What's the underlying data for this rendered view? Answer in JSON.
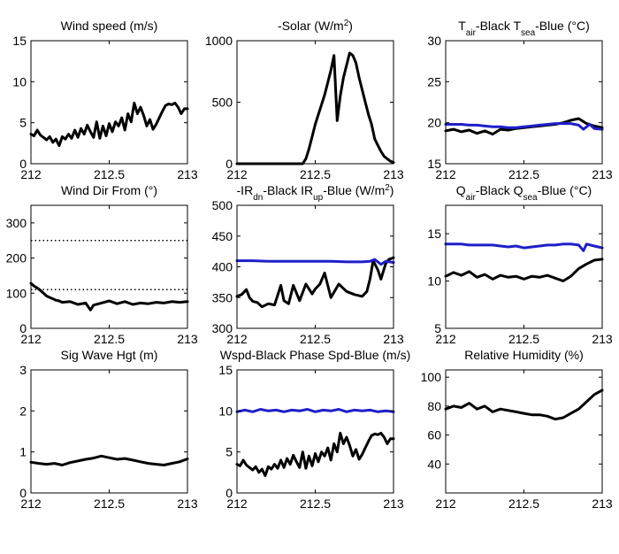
{
  "chart_data": [
    {
      "type": "line",
      "title": "Wind speed (m/s)",
      "xlim": [
        212,
        213
      ],
      "ylim": [
        0,
        15
      ],
      "xticks": [
        212,
        212.5,
        213
      ],
      "xticklabels": [
        "212",
        "212.5",
        "213"
      ],
      "yticks": [
        0,
        5,
        10,
        15
      ],
      "yticklabels": [
        "0",
        "5",
        "10",
        "15"
      ],
      "series": [
        {
          "color": "#000000",
          "style": "solid",
          "x": [
            212,
            212.02,
            212.04,
            212.06,
            212.08,
            212.1,
            212.12,
            212.14,
            212.16,
            212.18,
            212.2,
            212.22,
            212.24,
            212.26,
            212.28,
            212.3,
            212.32,
            212.34,
            212.36,
            212.38,
            212.4,
            212.42,
            212.44,
            212.46,
            212.48,
            212.5,
            212.52,
            212.54,
            212.56,
            212.58,
            212.6,
            212.62,
            212.64,
            212.66,
            212.68,
            212.7,
            212.72,
            212.74,
            212.76,
            212.78,
            212.8,
            212.82,
            212.84,
            212.86,
            212.88,
            212.9,
            212.92,
            212.94,
            212.96,
            212.98,
            213
          ],
          "y": [
            3.6,
            3.4,
            4.1,
            3.5,
            3.2,
            2.9,
            3.3,
            2.6,
            3.0,
            2.2,
            3.3,
            3.0,
            3.6,
            3.1,
            4.1,
            3.2,
            4.3,
            3.6,
            4.7,
            3.9,
            3.2,
            5.1,
            3.1,
            4.6,
            3.4,
            4.9,
            3.9,
            5.1,
            4.6,
            5.6,
            4.1,
            6.1,
            5.1,
            7.4,
            6.1,
            6.9,
            5.9,
            4.6,
            5.4,
            4.2,
            4.8,
            5.6,
            6.4,
            7.1,
            7.3,
            7.2,
            7.4,
            6.9,
            6.1,
            6.7,
            6.7
          ]
        }
      ]
    },
    {
      "type": "line",
      "title": "-Solar (W/m²)",
      "xlim": [
        212,
        213
      ],
      "ylim": [
        0,
        1000
      ],
      "xticks": [
        212,
        212.5,
        213
      ],
      "xticklabels": [
        "212",
        "212.5",
        "213"
      ],
      "yticks": [
        0,
        500,
        1000
      ],
      "yticklabels": [
        "0",
        "500",
        "1000"
      ],
      "series": [
        {
          "color": "#000000",
          "style": "solid",
          "x": [
            212,
            212.1,
            212.2,
            212.3,
            212.38,
            212.42,
            212.44,
            212.46,
            212.48,
            212.5,
            212.52,
            212.54,
            212.56,
            212.58,
            212.6,
            212.62,
            212.64,
            212.66,
            212.68,
            212.7,
            212.72,
            212.74,
            212.76,
            212.78,
            212.8,
            212.82,
            212.84,
            212.86,
            212.88,
            212.9,
            212.92,
            212.94,
            212.96,
            212.98,
            213
          ],
          "y": [
            0,
            0,
            0,
            0,
            0,
            0,
            40,
            120,
            220,
            320,
            400,
            480,
            560,
            660,
            760,
            880,
            350,
            550,
            700,
            800,
            900,
            880,
            820,
            700,
            600,
            500,
            400,
            320,
            200,
            150,
            100,
            60,
            40,
            20,
            10
          ]
        }
      ]
    },
    {
      "type": "line",
      "title": "T_air-Black T_sea-Blue (°C)",
      "xlim": [
        212,
        213
      ],
      "ylim": [
        15,
        30
      ],
      "xticks": [
        212,
        212.5,
        213
      ],
      "xticklabels": [
        "212",
        "212.5",
        "213"
      ],
      "yticks": [
        15,
        20,
        25,
        30
      ],
      "yticklabels": [
        "15",
        "20",
        "25",
        "30"
      ],
      "series": [
        {
          "color": "#000000",
          "style": "solid",
          "x": [
            212,
            212.05,
            212.1,
            212.15,
            212.2,
            212.25,
            212.3,
            212.35,
            212.4,
            212.45,
            212.5,
            212.55,
            212.6,
            212.65,
            212.7,
            212.75,
            212.8,
            212.85,
            212.9,
            212.95,
            213
          ],
          "y": [
            19.0,
            19.2,
            18.9,
            19.1,
            18.7,
            19.0,
            18.6,
            19.2,
            19.1,
            19.3,
            19.4,
            19.5,
            19.6,
            19.7,
            19.8,
            20.0,
            20.3,
            20.5,
            19.9,
            19.6,
            19.4
          ]
        },
        {
          "color": "#1f1fc8",
          "style": "solid",
          "x": [
            212,
            212.05,
            212.1,
            212.15,
            212.2,
            212.25,
            212.3,
            212.35,
            212.4,
            212.45,
            212.5,
            212.55,
            212.6,
            212.65,
            212.7,
            212.75,
            212.8,
            212.85,
            212.88,
            212.9,
            212.92,
            212.95,
            213
          ],
          "y": [
            19.8,
            19.8,
            19.8,
            19.7,
            19.7,
            19.6,
            19.5,
            19.5,
            19.4,
            19.4,
            19.5,
            19.6,
            19.7,
            19.8,
            19.9,
            19.9,
            19.9,
            19.7,
            19.2,
            19.5,
            19.8,
            19.3,
            19.2
          ]
        }
      ]
    },
    {
      "type": "line",
      "title": "Wind Dir From (°)",
      "xlim": [
        212,
        213
      ],
      "ylim": [
        0,
        350
      ],
      "xticks": [
        212,
        212.5,
        213
      ],
      "xticklabels": [
        "212",
        "212.5",
        "213"
      ],
      "yticks": [
        0,
        100,
        200,
        300
      ],
      "yticklabels": [
        "0",
        "100",
        "200",
        "300"
      ],
      "series": [
        {
          "color": "#000000",
          "style": "solid",
          "x": [
            212,
            212.02,
            212.04,
            212.06,
            212.08,
            212.1,
            212.12,
            212.14,
            212.16,
            212.18,
            212.2,
            212.25,
            212.3,
            212.35,
            212.38,
            212.4,
            212.45,
            212.5,
            212.55,
            212.6,
            212.65,
            212.7,
            212.75,
            212.8,
            212.85,
            212.9,
            212.95,
            213
          ],
          "y": [
            128,
            120,
            115,
            108,
            100,
            92,
            88,
            84,
            80,
            78,
            74,
            76,
            68,
            72,
            52,
            66,
            72,
            78,
            70,
            76,
            68,
            72,
            70,
            74,
            72,
            76,
            74,
            76
          ]
        },
        {
          "color": "#000000",
          "style": "dotted",
          "x": [
            212,
            213
          ],
          "y": [
            250,
            250
          ]
        },
        {
          "color": "#000000",
          "style": "dotted",
          "x": [
            212,
            213
          ],
          "y": [
            110,
            110
          ]
        }
      ]
    },
    {
      "type": "line",
      "title": "-IR_dn-Black IR_up-Blue (W/m²)",
      "xlim": [
        212,
        213
      ],
      "ylim": [
        300,
        500
      ],
      "xticks": [
        212,
        212.5,
        213
      ],
      "xticklabels": [
        "212",
        "212.5",
        "213"
      ],
      "yticks": [
        300,
        350,
        400,
        450,
        500
      ],
      "yticklabels": [
        "300",
        "350",
        "400",
        "450",
        "500"
      ],
      "series": [
        {
          "color": "#000000",
          "style": "solid",
          "x": [
            212,
            212.03,
            212.06,
            212.08,
            212.1,
            212.13,
            212.16,
            212.2,
            212.24,
            212.28,
            212.3,
            212.33,
            212.36,
            212.4,
            212.44,
            212.48,
            212.5,
            212.53,
            212.56,
            212.6,
            212.65,
            212.7,
            212.75,
            212.8,
            212.83,
            212.85,
            212.87,
            212.9,
            212.92,
            212.95,
            212.97,
            213
          ],
          "y": [
            352,
            355,
            363,
            350,
            344,
            342,
            335,
            340,
            338,
            370,
            345,
            340,
            370,
            345,
            372,
            356,
            364,
            372,
            390,
            350,
            372,
            360,
            355,
            352,
            360,
            380,
            410,
            395,
            380,
            405,
            412,
            415
          ]
        },
        {
          "color": "#1f1fc8",
          "style": "solid",
          "x": [
            212,
            212.1,
            212.2,
            212.3,
            212.4,
            212.5,
            212.6,
            212.7,
            212.8,
            212.85,
            212.88,
            212.9,
            212.92,
            212.95,
            213
          ],
          "y": [
            410,
            410,
            409,
            409,
            409,
            409,
            409,
            408,
            408,
            409,
            412,
            408,
            404,
            409,
            407
          ]
        }
      ]
    },
    {
      "type": "line",
      "title": "Q_air-Black Q_sea-Blue (°C)",
      "xlim": [
        212,
        213
      ],
      "ylim": [
        5,
        18
      ],
      "xticks": [
        212,
        212.5,
        213
      ],
      "xticklabels": [
        "212",
        "212.5",
        "213"
      ],
      "yticks": [
        5,
        10,
        15
      ],
      "yticklabels": [
        "5",
        "10",
        "15"
      ],
      "series": [
        {
          "color": "#000000",
          "style": "solid",
          "x": [
            212,
            212.05,
            212.1,
            212.15,
            212.2,
            212.25,
            212.3,
            212.35,
            212.4,
            212.45,
            212.5,
            212.55,
            212.6,
            212.65,
            212.7,
            212.75,
            212.8,
            212.85,
            212.9,
            212.95,
            213
          ],
          "y": [
            10.5,
            10.9,
            10.6,
            11.0,
            10.4,
            10.7,
            10.2,
            10.6,
            10.4,
            10.5,
            10.2,
            10.5,
            10.4,
            10.6,
            10.3,
            10.0,
            10.5,
            11.3,
            11.8,
            12.2,
            12.3
          ]
        },
        {
          "color": "#1f1fc8",
          "style": "solid",
          "x": [
            212,
            212.05,
            212.1,
            212.15,
            212.2,
            212.25,
            212.3,
            212.35,
            212.4,
            212.45,
            212.5,
            212.55,
            212.6,
            212.65,
            212.7,
            212.75,
            212.8,
            212.85,
            212.88,
            212.9,
            212.95,
            213
          ],
          "y": [
            13.9,
            13.9,
            13.9,
            13.8,
            13.8,
            13.8,
            13.8,
            13.7,
            13.6,
            13.7,
            13.5,
            13.6,
            13.7,
            13.8,
            13.8,
            13.9,
            13.9,
            13.8,
            13.2,
            13.9,
            13.7,
            13.5
          ]
        }
      ]
    },
    {
      "type": "line",
      "title": "Sig Wave Hgt (m)",
      "xlim": [
        212,
        213
      ],
      "ylim": [
        0,
        3
      ],
      "xticks": [
        212,
        212.5,
        213
      ],
      "xticklabels": [
        "212",
        "212.5",
        "213"
      ],
      "yticks": [
        0,
        1,
        2,
        3
      ],
      "yticklabels": [
        "0",
        "1",
        "2",
        "3"
      ],
      "series": [
        {
          "color": "#000000",
          "style": "solid",
          "x": [
            212,
            212.05,
            212.1,
            212.15,
            212.2,
            212.25,
            212.3,
            212.35,
            212.4,
            212.45,
            212.5,
            212.55,
            212.6,
            212.65,
            212.7,
            212.75,
            212.8,
            212.85,
            212.9,
            212.95,
            213
          ],
          "y": [
            0.75,
            0.72,
            0.7,
            0.72,
            0.68,
            0.74,
            0.78,
            0.82,
            0.85,
            0.9,
            0.86,
            0.82,
            0.84,
            0.8,
            0.76,
            0.72,
            0.7,
            0.68,
            0.72,
            0.76,
            0.83
          ]
        }
      ]
    },
    {
      "type": "line",
      "title": "Wspd-Black Phase Spd-Blue (m/s)",
      "xlim": [
        212,
        213
      ],
      "ylim": [
        0,
        15
      ],
      "xticks": [
        212,
        212.5,
        213
      ],
      "xticklabels": [
        "212",
        "212.5",
        "213"
      ],
      "yticks": [
        0,
        5,
        10,
        15
      ],
      "yticklabels": [
        "0",
        "5",
        "10",
        "15"
      ],
      "series": [
        {
          "color": "#000000",
          "style": "solid",
          "x": [
            212,
            212.02,
            212.04,
            212.06,
            212.08,
            212.1,
            212.12,
            212.14,
            212.16,
            212.18,
            212.2,
            212.22,
            212.24,
            212.26,
            212.28,
            212.3,
            212.32,
            212.34,
            212.36,
            212.38,
            212.4,
            212.42,
            212.44,
            212.46,
            212.48,
            212.5,
            212.52,
            212.54,
            212.56,
            212.58,
            212.6,
            212.62,
            212.64,
            212.66,
            212.68,
            212.7,
            212.72,
            212.74,
            212.76,
            212.78,
            212.8,
            212.82,
            212.84,
            212.86,
            212.88,
            212.9,
            212.92,
            212.94,
            212.96,
            212.98,
            213
          ],
          "y": [
            3.5,
            3.3,
            4.0,
            3.4,
            3.1,
            2.8,
            3.2,
            2.5,
            2.9,
            2.1,
            3.2,
            2.9,
            3.5,
            3.0,
            4.0,
            3.1,
            4.2,
            3.5,
            4.6,
            3.8,
            3.1,
            5.0,
            3.0,
            4.5,
            3.3,
            4.8,
            3.8,
            5.0,
            4.5,
            5.5,
            4.0,
            6.0,
            5.0,
            7.3,
            6.0,
            6.8,
            5.8,
            4.5,
            5.3,
            4.1,
            4.7,
            5.5,
            6.3,
            7.0,
            7.2,
            7.1,
            7.3,
            6.8,
            6.0,
            6.6,
            6.6
          ]
        },
        {
          "color": "#1f1fc8",
          "style": "solid",
          "x": [
            212,
            212.05,
            212.1,
            212.15,
            212.2,
            212.25,
            212.3,
            212.35,
            212.4,
            212.45,
            212.5,
            212.55,
            212.6,
            212.65,
            212.7,
            212.75,
            212.8,
            212.85,
            212.9,
            212.95,
            213
          ],
          "y": [
            9.9,
            10.1,
            9.9,
            10.2,
            10.0,
            10.1,
            9.9,
            10.1,
            10.0,
            10.2,
            9.9,
            10.1,
            10.0,
            10.2,
            9.9,
            10.1,
            10.0,
            10.1,
            9.9,
            10.0,
            9.9
          ]
        }
      ]
    },
    {
      "type": "line",
      "title": "Relative Humidity (%)",
      "xlim": [
        212,
        213
      ],
      "ylim": [
        20,
        105
      ],
      "xticks": [
        212,
        212.5,
        213
      ],
      "xticklabels": [
        "212",
        "212.5",
        "213"
      ],
      "yticks": [
        40,
        60,
        80,
        100
      ],
      "yticklabels": [
        "40",
        "60",
        "80",
        "100"
      ],
      "series": [
        {
          "color": "#000000",
          "style": "solid",
          "x": [
            212,
            212.05,
            212.1,
            212.15,
            212.2,
            212.25,
            212.3,
            212.35,
            212.4,
            212.45,
            212.5,
            212.55,
            212.6,
            212.65,
            212.7,
            212.75,
            212.8,
            212.85,
            212.9,
            212.95,
            213
          ],
          "y": [
            78,
            80,
            79,
            82,
            78,
            80,
            76,
            78,
            77,
            76,
            75,
            74,
            74,
            73,
            71,
            72,
            75,
            78,
            83,
            88,
            91
          ]
        }
      ]
    }
  ]
}
